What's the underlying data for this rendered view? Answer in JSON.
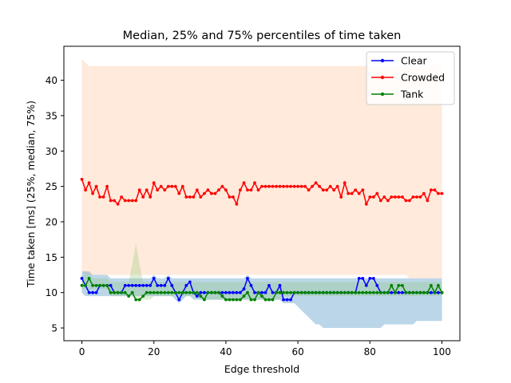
{
  "chart_data": {
    "type": "line",
    "title": "Median, 25% and 75% percentiles of time taken",
    "xlabel": "Edge threshold",
    "ylabel": "Time taken [ms] (25%, median, 75%)",
    "xlim": [
      -5,
      105
    ],
    "ylim": [
      3.2,
      44.8
    ],
    "xticks": [
      0,
      20,
      40,
      60,
      80,
      100
    ],
    "yticks": [
      5,
      10,
      15,
      20,
      25,
      30,
      35,
      40
    ],
    "grid": false,
    "legend_position": "top-right",
    "x": [
      0,
      1,
      2,
      3,
      4,
      5,
      6,
      7,
      8,
      9,
      10,
      11,
      12,
      13,
      14,
      15,
      16,
      17,
      18,
      19,
      20,
      21,
      22,
      23,
      24,
      25,
      26,
      27,
      28,
      29,
      30,
      31,
      32,
      33,
      34,
      35,
      36,
      37,
      38,
      39,
      40,
      41,
      42,
      43,
      44,
      45,
      46,
      47,
      48,
      49,
      50,
      51,
      52,
      53,
      54,
      55,
      56,
      57,
      58,
      59,
      60,
      61,
      62,
      63,
      64,
      65,
      66,
      67,
      68,
      69,
      70,
      71,
      72,
      73,
      74,
      75,
      76,
      77,
      78,
      79,
      80,
      81,
      82,
      83,
      84,
      85,
      86,
      87,
      88,
      89,
      90,
      91,
      92,
      93,
      94,
      95,
      96,
      97,
      98,
      99,
      100
    ],
    "series": [
      {
        "name": "Clear",
        "color": "#0000ff",
        "band_color": "#1f77b4",
        "median": [
          12,
          11,
          10,
          10,
          10,
          11,
          11,
          11,
          11,
          10,
          10,
          10,
          11,
          11,
          11,
          11,
          11,
          11,
          11,
          11,
          12,
          11,
          11,
          11,
          12,
          11,
          10,
          9,
          10,
          11,
          11.5,
          10,
          9.5,
          10,
          10,
          10,
          10,
          10,
          10,
          10,
          10,
          10,
          10,
          10,
          10,
          10.5,
          12,
          11,
          10,
          10,
          10,
          10,
          11,
          10,
          10,
          11,
          9,
          9,
          9,
          10,
          10,
          10,
          10,
          10,
          10,
          10,
          10,
          10,
          10,
          10,
          10,
          10,
          10,
          10,
          10,
          10,
          10,
          12,
          12,
          11,
          12,
          12,
          11,
          10,
          10,
          10,
          10,
          10,
          10,
          10,
          10,
          10,
          10,
          10,
          10,
          10,
          10,
          10,
          10,
          10,
          10
        ],
        "p25": [
          10,
          9.5,
          9.5,
          9.5,
          9.5,
          9.5,
          9.5,
          9.5,
          9.5,
          9.5,
          9.5,
          9.5,
          9.5,
          9.5,
          9.5,
          9.5,
          9.5,
          9.5,
          9.5,
          9.5,
          9.5,
          9.5,
          9.5,
          9.5,
          9.5,
          9.5,
          9,
          8.5,
          9,
          9.5,
          9.5,
          9,
          9,
          9,
          9,
          9,
          9,
          9,
          9,
          9,
          9,
          9,
          9,
          9,
          9,
          9,
          9,
          9,
          9,
          9,
          9,
          9,
          9,
          9,
          9,
          9,
          8.5,
          8.5,
          8.5,
          8.5,
          8,
          7.5,
          7,
          6.5,
          6,
          5.5,
          5.5,
          5,
          5,
          5,
          5,
          5,
          5,
          5,
          5,
          5,
          5,
          5,
          5,
          5,
          5,
          5,
          5,
          5,
          5.5,
          5.5,
          5.5,
          5.5,
          5.5,
          5.5,
          5.5,
          5.5,
          5.5,
          6,
          6,
          6,
          6,
          6,
          6,
          6,
          6
        ],
        "p75": [
          13,
          13,
          13,
          12.5,
          12.5,
          12.5,
          12.5,
          12.5,
          12,
          12,
          12,
          12,
          12,
          12,
          12,
          12,
          12,
          12,
          12,
          12,
          12.5,
          12,
          12,
          12,
          12.5,
          12,
          12,
          12,
          12,
          12,
          12,
          12,
          12,
          12,
          12,
          12,
          12,
          12,
          12,
          12,
          12,
          12,
          12,
          12,
          12,
          12,
          12.5,
          12,
          12,
          12,
          12,
          12,
          12,
          12,
          12,
          12,
          12,
          12,
          12,
          12,
          12,
          12,
          12,
          12,
          12,
          12,
          12,
          12,
          12,
          12,
          12,
          12,
          12,
          12,
          12,
          12,
          12,
          12,
          12,
          12,
          12,
          12,
          12,
          12,
          12,
          12,
          12,
          12,
          12,
          12,
          12,
          12,
          12,
          12,
          12,
          12,
          12,
          12,
          12,
          12,
          12
        ]
      },
      {
        "name": "Crowded",
        "color": "#ff0000",
        "band_color": "#ffbb88",
        "median": [
          26,
          24.5,
          25.5,
          24,
          25,
          23.5,
          23.5,
          25,
          23,
          23,
          22.5,
          23.5,
          23,
          23,
          23,
          23,
          24.5,
          23.5,
          24.5,
          23.5,
          25.5,
          24.5,
          25,
          24.5,
          25,
          25,
          25,
          24,
          25,
          23.5,
          23.5,
          23.5,
          24.5,
          23.5,
          24,
          24.5,
          24,
          24,
          24.5,
          25,
          24.5,
          23.5,
          23.5,
          22.5,
          24.5,
          25.5,
          24.5,
          24.5,
          25.5,
          24.5,
          25,
          25,
          25,
          25,
          25,
          25,
          25,
          25,
          25,
          25,
          25,
          25,
          25,
          24.5,
          25,
          25.5,
          25,
          24.5,
          24.5,
          25,
          24.5,
          25,
          23.5,
          25.5,
          24,
          24,
          24.5,
          24,
          24.5,
          22.5,
          23.5,
          23.5,
          24,
          23,
          23.5,
          23,
          23.5,
          23.5,
          23.5,
          23.5,
          23,
          23,
          23.5,
          23.5,
          23.5,
          24,
          23,
          24.5,
          24.5,
          24,
          24
        ],
        "p25": [
          13,
          12.5,
          12.5,
          12.5,
          12.5,
          12.5,
          12.5,
          12.5,
          12.5,
          12.5,
          12.5,
          12.5,
          12.5,
          12.5,
          12.5,
          12.5,
          12.5,
          12.5,
          12.5,
          12.5,
          12.5,
          12.5,
          12.5,
          12.5,
          12.5,
          12.5,
          12.5,
          12.5,
          12.5,
          12.5,
          12.5,
          12.5,
          12.5,
          12.5,
          12.5,
          12.5,
          12.5,
          12.5,
          12.5,
          12.5,
          12.5,
          12.5,
          12.5,
          12.5,
          12.5,
          12.5,
          12.5,
          12.5,
          12.5,
          12.5,
          12.5,
          12.5,
          12.5,
          12.5,
          12.5,
          12.5,
          12.5,
          12.5,
          12.5,
          12.5,
          12.5,
          12.5,
          12.5,
          12.5,
          12.5,
          12.5,
          12.5,
          12.5,
          12.5,
          12.5,
          12.5,
          12.5,
          12.5,
          12.5,
          12.5,
          12.5,
          12.5,
          12.5,
          12.5,
          12.5,
          12.5,
          12.5,
          12.5,
          12.5,
          12.5,
          12.5,
          12.5,
          12.5,
          12.5,
          12.5,
          12.5,
          12,
          12,
          12,
          12,
          12,
          12,
          12,
          12,
          12,
          12
        ],
        "p75": [
          43,
          42.5,
          42,
          42,
          42,
          42,
          42,
          42,
          42,
          42,
          42,
          42,
          42,
          42,
          42,
          42,
          42,
          42,
          42,
          42,
          42,
          42,
          42,
          42,
          42,
          42,
          42,
          42,
          42,
          42,
          42,
          42,
          42,
          42,
          42,
          42,
          42,
          42,
          42,
          42,
          42,
          42,
          42,
          42,
          42,
          42,
          42,
          42,
          42,
          42,
          42,
          42,
          42,
          42,
          42,
          42,
          42,
          42,
          42,
          42,
          42,
          42,
          42,
          42,
          42,
          42,
          42,
          42,
          42,
          42,
          42,
          42,
          42,
          42,
          42,
          42,
          42,
          42,
          42,
          42,
          42,
          42,
          42,
          42,
          42,
          42,
          42,
          42,
          42,
          42,
          42,
          42,
          42,
          42,
          42,
          42,
          42,
          42,
          42,
          42.5,
          42.5
        ]
      },
      {
        "name": "Tank",
        "color": "#008000",
        "band_color": "#90c878",
        "median": [
          11,
          11,
          12,
          11,
          11,
          11,
          11,
          11,
          10,
          10,
          10,
          10,
          10,
          9.5,
          10,
          9,
          9,
          9.5,
          10,
          10,
          10,
          10,
          10,
          10,
          10,
          10,
          10,
          10,
          10,
          10,
          10,
          10,
          10,
          9.5,
          9,
          10,
          10,
          10,
          10,
          9.5,
          9,
          9,
          9,
          9,
          9,
          9.5,
          10,
          9,
          9,
          10,
          9.5,
          9,
          9,
          9,
          10,
          10,
          10,
          10,
          10,
          10,
          10,
          10,
          10,
          10,
          10,
          10,
          10,
          10,
          10,
          10,
          10,
          10,
          10,
          10,
          10,
          10,
          10,
          10,
          10,
          10,
          10,
          10,
          10,
          10,
          10,
          10,
          11,
          10,
          11,
          11,
          10,
          10,
          10,
          10,
          10,
          10,
          10,
          11,
          10,
          11,
          10
        ],
        "p25": [
          10.5,
          10.5,
          10.5,
          10.5,
          10.5,
          10.5,
          10.5,
          10.5,
          9.5,
          9.5,
          9.5,
          9.5,
          9.5,
          9.5,
          9.5,
          9,
          9,
          9,
          9,
          9,
          9.5,
          9.5,
          9.5,
          9.5,
          9.5,
          9.5,
          9.5,
          9.5,
          9.5,
          9.5,
          9.5,
          9.5,
          9.5,
          9,
          9,
          9,
          9,
          9,
          9,
          9,
          9,
          9,
          9,
          9,
          9,
          9,
          9,
          9,
          9,
          9,
          9,
          9,
          9,
          9,
          9,
          9,
          9.5,
          9.5,
          9.5,
          9.5,
          9.5,
          9.5,
          9.5,
          9.5,
          9.5,
          9.5,
          9.5,
          9.5,
          9.5,
          9.5,
          9.5,
          9.5,
          9.5,
          9.5,
          9.5,
          9.5,
          9.5,
          9.5,
          9.5,
          9.5,
          9.5,
          9.5,
          9.5,
          9.5,
          9.5,
          9.5,
          9.5,
          9.5,
          9.5,
          9.5,
          9.5,
          9.5,
          9.5,
          9.5,
          9.5,
          9.5,
          9.5,
          9.5,
          9.5,
          9.5,
          9.5
        ],
        "p75": [
          12.5,
          12.5,
          12.5,
          12,
          12,
          12,
          12,
          12,
          11.5,
          11.5,
          11.5,
          11.5,
          11.5,
          11.5,
          14,
          17,
          14,
          11.5,
          11.5,
          11.5,
          11.5,
          11.5,
          11.5,
          11.5,
          11.5,
          11.5,
          11.5,
          11.5,
          11.5,
          11.5,
          11.5,
          11.5,
          11.5,
          11.5,
          11.5,
          11.5,
          11.5,
          11.5,
          11.5,
          11.5,
          11.5,
          11.5,
          11.5,
          11.5,
          11.5,
          11.5,
          11.5,
          11.5,
          11.5,
          11.5,
          11.5,
          11.5,
          11.5,
          11.5,
          11.5,
          11.5,
          11.5,
          11.5,
          11.5,
          11.5,
          11.5,
          11.5,
          11.5,
          11.5,
          11.5,
          11.5,
          11.5,
          11.5,
          11.5,
          11.5,
          11.5,
          11.5,
          11.5,
          11.5,
          11.5,
          11.5,
          11.5,
          11.5,
          11.5,
          11.5,
          11.5,
          11.5,
          11.5,
          11.5,
          11.5,
          11.5,
          11.5,
          11.5,
          11.5,
          11.5,
          11.5,
          11.5,
          11.5,
          11.5,
          11.5,
          11.5,
          11.5,
          11.5,
          11.5,
          11.5,
          11.5
        ]
      }
    ]
  }
}
